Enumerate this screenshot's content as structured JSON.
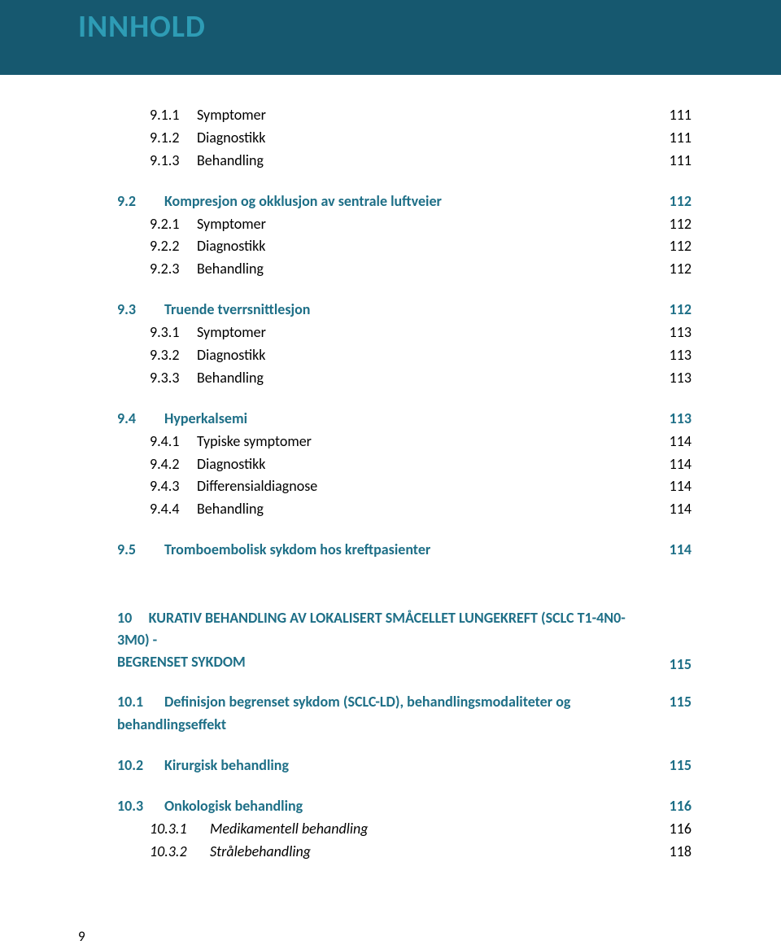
{
  "colors": {
    "band_bg": "#16586f",
    "title_color": "#2e9cb5",
    "section_color": "#1e6f87"
  },
  "header": {
    "title": "INNHOLD"
  },
  "toc": {
    "g1": [
      {
        "num": "9.1.1",
        "label": "Symptomer",
        "page": "111"
      },
      {
        "num": "9.1.2",
        "label": "Diagnostikk",
        "page": "111"
      },
      {
        "num": "9.1.3",
        "label": "Behandling",
        "page": "111"
      }
    ],
    "s92": {
      "num": "9.2",
      "label": "Kompresjon og okklusjon av sentrale luftveier",
      "page": "112"
    },
    "g2": [
      {
        "num": "9.2.1",
        "label": "Symptomer",
        "page": "112"
      },
      {
        "num": "9.2.2",
        "label": "Diagnostikk",
        "page": "112"
      },
      {
        "num": "9.2.3",
        "label": "Behandling",
        "page": "112"
      }
    ],
    "s93": {
      "num": "9.3",
      "label": "Truende tverrsnittlesjon",
      "page": "112"
    },
    "g3": [
      {
        "num": "9.3.1",
        "label": "Symptomer",
        "page": "113"
      },
      {
        "num": "9.3.2",
        "label": "Diagnostikk",
        "page": "113"
      },
      {
        "num": "9.3.3",
        "label": "Behandling",
        "page": "113"
      }
    ],
    "s94": {
      "num": "9.4",
      "label": "Hyperkalsemi",
      "page": "113"
    },
    "g4": [
      {
        "num": "9.4.1",
        "label": "Typiske symptomer",
        "page": "114"
      },
      {
        "num": "9.4.2",
        "label": "Diagnostikk",
        "page": "114"
      },
      {
        "num": "9.4.3",
        "label": "Differensialdiagnose",
        "page": "114"
      },
      {
        "num": "9.4.4",
        "label": "Behandling",
        "page": "114"
      }
    ],
    "s95": {
      "num": "9.5",
      "label": "Tromboembolisk sykdom hos kreftpasienter",
      "page": "114"
    },
    "chapter10": {
      "num_prefix": "10",
      "line1": "KURATIV BEHANDLING AV LOKALISERT SMÅCELLET LUNGEKREFT (SCLC T1-4N0-3M0) -",
      "line2": "BEGRENSET SYKDOM",
      "page": "115"
    },
    "s101": {
      "num": "10.1",
      "label": "Definisjon begrenset sykdom (SCLC-LD), behandlingsmodaliteter og behandlingseffekt",
      "page": "115"
    },
    "s102": {
      "num": "10.2",
      "label": "Kirurgisk behandling",
      "page": "115"
    },
    "s103": {
      "num": "10.3",
      "label": "Onkologisk behandling",
      "page": "116"
    },
    "g103": [
      {
        "num": "10.3.1",
        "label": "Medikamentell behandling",
        "page": "116"
      },
      {
        "num": "10.3.2",
        "label": "Strålebehandling",
        "page": "118"
      }
    ]
  },
  "footer": {
    "page_number": "9"
  }
}
